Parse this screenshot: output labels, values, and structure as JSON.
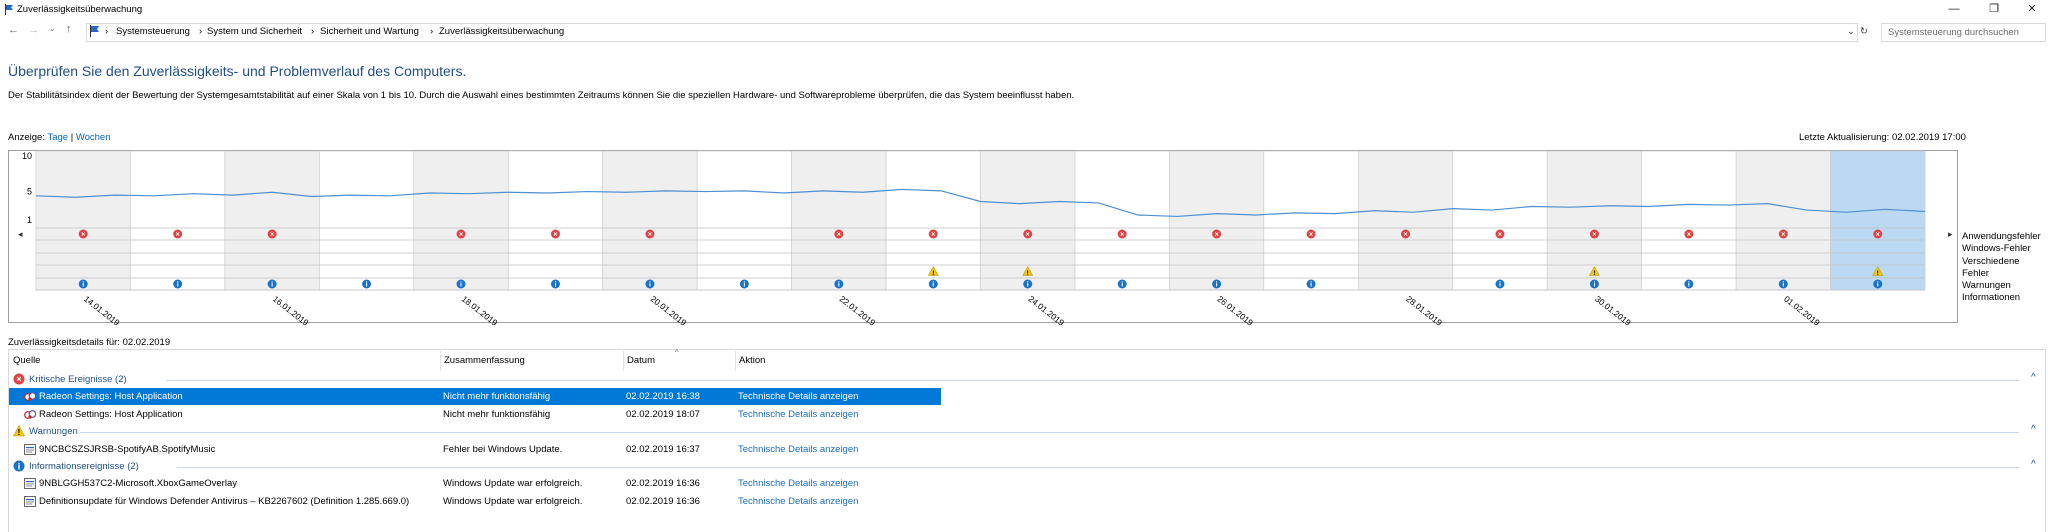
{
  "window": {
    "title": "Zuverlässigkeitsüberwachung"
  },
  "breadcrumb": [
    "Systemsteuerung",
    "System und Sicherheit",
    "Sicherheit und Wartung",
    "Zuverlässigkeitsüberwachung"
  ],
  "search": {
    "placeholder": "Systemsteuerung durchsuchen"
  },
  "page": {
    "heading": "Überprüfen Sie den Zuverlässigkeits- und Problemverlauf des Computers.",
    "description": "Der Stabilitätsindex dient der Bewertung der Systemgesamtstabilität auf einer Skala von 1 bis 10. Durch die Auswahl eines bestimmten Zeitraums können Sie die speziellen Hardware- und Softwareprobleme überprüfen, die das System beeinflusst haben.",
    "view_label": "Anzeige:",
    "view_days": "Tage",
    "view_sep": "|",
    "view_weeks": "Wochen",
    "last_update": "Letzte Aktualisierung: 02.02.2019 17:00",
    "details_for": "Zuverlässigkeitsdetails für: 02.02.2019"
  },
  "chart_data": {
    "type": "line",
    "y_ticks": [
      "10",
      "5",
      "1"
    ],
    "ylim": [
      1,
      10
    ],
    "date_labels": [
      "14.01.2019",
      "16.01.2019",
      "18.01.2019",
      "20.01.2019",
      "22.01.2019",
      "24.01.2019",
      "26.01.2019",
      "28.01.2019",
      "30.01.2019",
      "01.02.2019"
    ],
    "days": 20,
    "stability": [
      4.4,
      4.2,
      4.5,
      4.4,
      4.7,
      4.5,
      4.9,
      4.3,
      4.5,
      4.4,
      4.8,
      4.7,
      4.9,
      4.8,
      5.0,
      4.9,
      5.1,
      5.0,
      5.1,
      4.8,
      5.1,
      4.9,
      5.3,
      5.1,
      3.6,
      3.3,
      3.6,
      3.4,
      1.7,
      1.5,
      1.9,
      1.7,
      2.0,
      1.9,
      2.3,
      2.1,
      2.6,
      2.4,
      2.9,
      2.8,
      3.0,
      2.9,
      3.2,
      3.1,
      3.3,
      2.4,
      2.1,
      2.5,
      2.2
    ],
    "rows": [
      "Anwendungsfehler",
      "Windows-Fehler",
      "Verschiedene Fehler",
      "Warnungen",
      "Informationen"
    ],
    "app_errors": [
      1,
      1,
      1,
      0,
      1,
      1,
      1,
      0,
      1,
      1,
      1,
      1,
      1,
      1,
      1,
      1,
      1,
      1,
      1,
      1
    ],
    "warnings": [
      0,
      0,
      0,
      0,
      0,
      0,
      0,
      0,
      0,
      1,
      1,
      0,
      0,
      0,
      0,
      0,
      1,
      0,
      0,
      1
    ],
    "infos": [
      1,
      1,
      1,
      1,
      1,
      1,
      1,
      1,
      1,
      1,
      1,
      1,
      1,
      1,
      0,
      1,
      1,
      1,
      1,
      1
    ],
    "selected_day": 20
  },
  "table": {
    "columns": [
      "Quelle",
      "Zusammenfassung",
      "Datum",
      "Aktion"
    ],
    "groups": [
      {
        "title": "Kritische Ereignisse (2)",
        "icon": "error-icon",
        "rows": [
          {
            "source": "Radeon Settings: Host Application",
            "summary": "Nicht mehr funktionsfähig",
            "date": "02.02.2019 16:38",
            "action": "Technische Details anzeigen",
            "selected": true
          },
          {
            "source": "Radeon Settings: Host Application",
            "summary": "Nicht mehr funktionsfähig",
            "date": "02.02.2019 18:07",
            "action": "Technische Details anzeigen"
          }
        ]
      },
      {
        "title": "Warnungen",
        "icon": "warning-icon",
        "rows": [
          {
            "source": "9NCBCSZSJRSB-SpotifyAB.SpotifyMusic",
            "summary": "Fehler bei Windows Update.",
            "date": "02.02.2019 16:37",
            "action": "Technische Details anzeigen"
          }
        ]
      },
      {
        "title": "Informationsereignisse (2)",
        "icon": "info-icon",
        "rows": [
          {
            "source": "9NBLGGH537C2-Microsoft.XboxGameOverlay",
            "summary": "Windows Update war erfolgreich.",
            "date": "02.02.2019 16:36",
            "action": "Technische Details anzeigen"
          },
          {
            "source": "Definitionsupdate für Windows Defender Antivirus – KB2267602 (Definition 1.285.669.0)",
            "summary": "Windows Update war erfolgreich.",
            "date": "02.02.2019 16:36",
            "action": "Technische Details anzeigen"
          }
        ]
      }
    ]
  },
  "colors": {
    "accent": "#0078d7",
    "line": "#4d8fd1",
    "error": "#e04343",
    "warning": "#f2c811",
    "info": "#1a73c6",
    "selected_col": "#bcd9f3"
  }
}
